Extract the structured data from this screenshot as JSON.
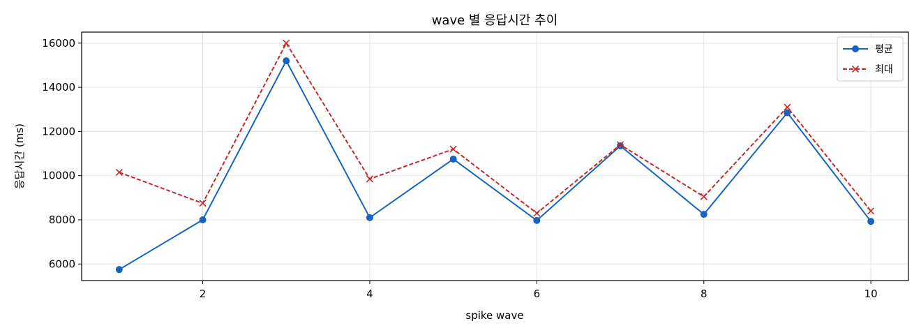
{
  "chart_data": {
    "type": "line",
    "title": "wave 별 응답시간 추이",
    "xlabel": "spike wave",
    "ylabel": "응답시간 (ms)",
    "x": [
      1,
      2,
      3,
      4,
      5,
      6,
      7,
      8,
      9,
      10
    ],
    "xlim": [
      0.55,
      10.45
    ],
    "ylim": [
      5250,
      16500
    ],
    "xticks": [
      2,
      4,
      6,
      8,
      10
    ],
    "yticks": [
      6000,
      8000,
      10000,
      12000,
      14000,
      16000
    ],
    "grid": true,
    "legend_position": "top-right",
    "series": [
      {
        "name": "평균",
        "color": "#1565c0",
        "line_style": "solid",
        "marker": "circle",
        "values": [
          5750,
          8000,
          15200,
          8100,
          10750,
          7970,
          11350,
          8250,
          12850,
          7930
        ]
      },
      {
        "name": "최대",
        "color": "#c62828",
        "line_style": "dashed",
        "marker": "x",
        "values": [
          10150,
          8750,
          16000,
          9850,
          11200,
          8300,
          11400,
          9050,
          13100,
          8400
        ]
      }
    ]
  }
}
